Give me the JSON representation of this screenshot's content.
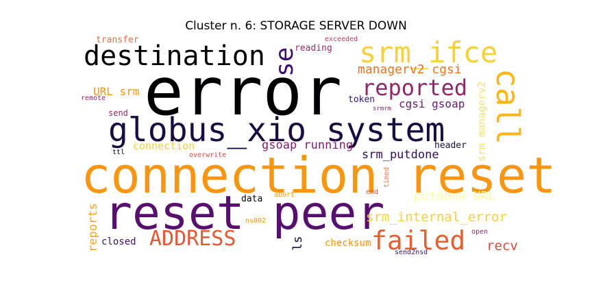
{
  "title": "Cluster n. 6: STORAGE SERVER DOWN",
  "words": [
    {
      "text": "error",
      "color": "#000004"
    },
    {
      "text": "connection reset",
      "color": "#f89511"
    },
    {
      "text": "reset peer",
      "color": "#57106e"
    },
    {
      "text": "globus_xio system",
      "color": "#1b0c41"
    },
    {
      "text": "destination",
      "color": "#000004"
    },
    {
      "text": "srm_ifce",
      "color": "#f7d13d"
    },
    {
      "text": "reported",
      "color": "#932667"
    },
    {
      "text": "call",
      "color": "#fbb61a"
    },
    {
      "text": "se",
      "color": "#3b0f70"
    },
    {
      "text": "failed",
      "color": "#e65d2f"
    },
    {
      "text": "ADDRESS",
      "color": "#e35933"
    },
    {
      "text": "srm_internal_error",
      "color": "#f7d13d"
    },
    {
      "text": "managerv2 cgsi",
      "color": "#f1731d"
    },
    {
      "text": "cgsi gsoap",
      "color": "#6a176e"
    },
    {
      "text": "gsoap running",
      "color": "#7c1d6f"
    },
    {
      "text": "srm_putdone",
      "color": "#320a5e"
    },
    {
      "text": "putdone URL",
      "color": "#fcffa4"
    },
    {
      "text": "srm managerv2",
      "color": "#f6e26e"
    },
    {
      "text": "connection",
      "color": "#f2d13a"
    },
    {
      "text": "URL srm",
      "color": "#f89511"
    },
    {
      "text": "recv",
      "color": "#d94b3a"
    },
    {
      "text": "reports",
      "color": "#f5a623"
    },
    {
      "text": "ls",
      "color": "#1b0c41"
    },
    {
      "text": "checksum",
      "color": "#f89511"
    },
    {
      "text": "closed",
      "color": "#3d1163"
    },
    {
      "text": "data",
      "color": "#000004"
    },
    {
      "text": "transfer",
      "color": "#e8703a"
    },
    {
      "text": "reading",
      "color": "#a02a63"
    },
    {
      "text": "exceeded",
      "color": "#bc3754"
    },
    {
      "text": "token",
      "color": "#3b0f70"
    },
    {
      "text": "header",
      "color": "#1b0c41"
    },
    {
      "text": "remote",
      "color": "#8a226a"
    },
    {
      "text": "send",
      "color": "#932667"
    },
    {
      "text": "srmrm",
      "color": "#932667"
    },
    {
      "text": "ttl",
      "color": "#000004"
    },
    {
      "text": "overwrite",
      "color": "#d44842"
    },
    {
      "text": "abort",
      "color": "#f89511"
    },
    {
      "text": "end",
      "color": "#dd513a"
    },
    {
      "text": "timed",
      "color": "#f37651"
    },
    {
      "text": "ns002",
      "color": "#f89511"
    },
    {
      "text": "open",
      "color": "#932667"
    },
    {
      "text": "send2nsd",
      "color": "#3d1163"
    }
  ]
}
